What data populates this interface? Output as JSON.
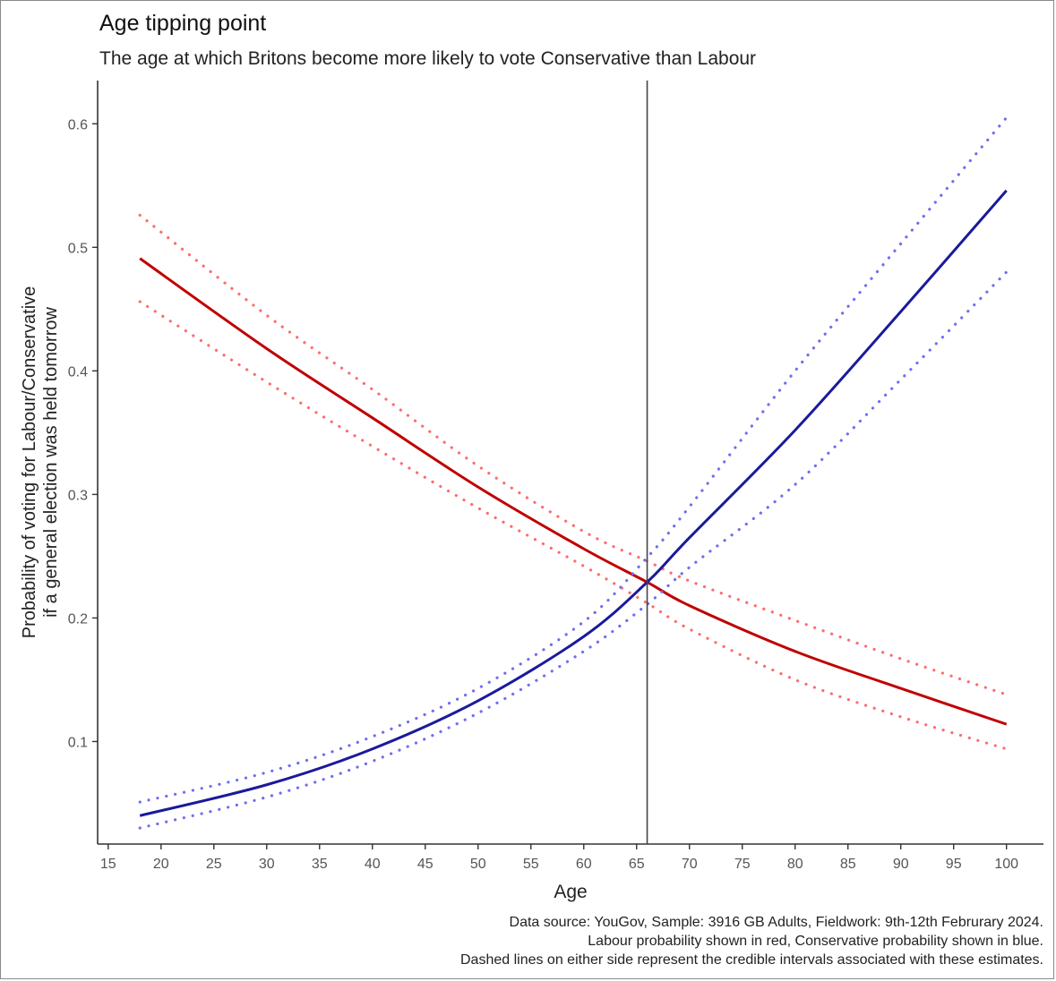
{
  "chart_data": {
    "type": "line",
    "title": "Age tipping point",
    "subtitle": "The age at which Britons become more likely to vote Conservative than Labour",
    "xlabel": "Age",
    "ylabel_line1": "Probability of voting for Labour/Conservative",
    "ylabel_line2": "if a general election was held tomorrow",
    "xlim": [
      14,
      103.5
    ],
    "ylim": [
      0.017,
      0.635
    ],
    "x_ticks": [
      15,
      20,
      25,
      30,
      35,
      40,
      45,
      50,
      55,
      60,
      65,
      70,
      75,
      80,
      85,
      90,
      95,
      100
    ],
    "x_tick_labels": [
      "15",
      "20",
      "25",
      "30",
      "35",
      "40",
      "45",
      "50",
      "55",
      "60",
      "65",
      "70",
      "75",
      "80",
      "85",
      "90",
      "95",
      "100"
    ],
    "y_ticks": [
      0.1,
      0.2,
      0.3,
      0.4,
      0.5,
      0.6
    ],
    "y_tick_labels": [
      "0.1",
      "0.2",
      "0.3",
      "0.4",
      "0.5",
      "0.6"
    ],
    "vline_x": 66,
    "grid": false,
    "x": [
      18,
      30,
      40,
      50,
      60,
      66,
      70,
      80,
      90,
      100
    ],
    "series": [
      {
        "color": "#c00000",
        "interval_color": "#ff6b6b",
        "values": [
          0.491,
          0.418,
          0.362,
          0.306,
          0.256,
          0.229,
          0.21,
          0.173,
          0.143,
          0.114
        ],
        "upper": [
          0.526,
          0.445,
          0.385,
          0.323,
          0.27,
          0.246,
          0.23,
          0.198,
          0.167,
          0.138
        ],
        "lower": [
          0.456,
          0.391,
          0.339,
          0.289,
          0.242,
          0.212,
          0.191,
          0.15,
          0.12,
          0.094
        ]
      },
      {
        "color": "#1a1a9c",
        "interval_color": "#6e6ef0",
        "values": [
          0.04,
          0.065,
          0.094,
          0.133,
          0.185,
          0.229,
          0.265,
          0.352,
          0.448,
          0.546
        ],
        "upper": [
          0.051,
          0.075,
          0.104,
          0.143,
          0.197,
          0.249,
          0.29,
          0.4,
          0.503,
          0.605
        ],
        "lower": [
          0.03,
          0.055,
          0.084,
          0.123,
          0.173,
          0.211,
          0.241,
          0.308,
          0.393,
          0.48
        ]
      }
    ]
  },
  "caption": {
    "line1": "Data source: YouGov, Sample: 3916 GB Adults, Fieldwork: 9th-12th Februrary 2024.",
    "line2": "Labour probability shown in red, Conservative probability shown in blue.",
    "line3": "Dashed lines on either side represent the credible intervals associated with these estimates."
  }
}
